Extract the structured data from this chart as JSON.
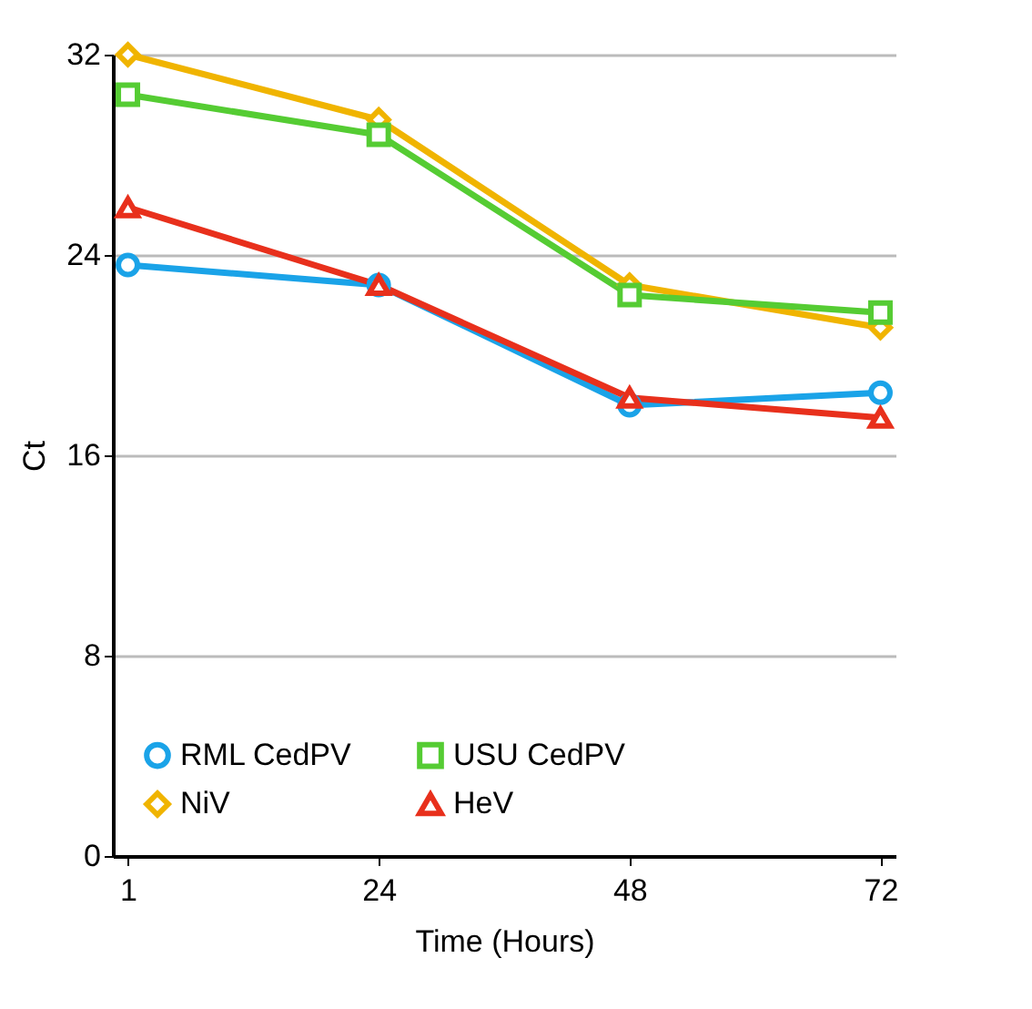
{
  "chart_data": {
    "type": "line",
    "xlabel": "Time (Hours)",
    "ylabel": "Ct",
    "categories": [
      "1",
      "24",
      "48",
      "72"
    ],
    "ylim": [
      0,
      32
    ],
    "yticks": [
      0,
      8,
      16,
      24,
      32
    ],
    "grid": "y",
    "legend": "bottom",
    "series": [
      {
        "name": "RML CedPV",
        "color": "#1aa3e8",
        "marker": "circle",
        "values": [
          23.6,
          22.8,
          18.0,
          18.5
        ]
      },
      {
        "name": "NiV",
        "color": "#f0b400",
        "marker": "diamond",
        "values": [
          32.0,
          29.4,
          22.8,
          21.1
        ]
      },
      {
        "name": "USU CedPV",
        "color": "#55cc33",
        "marker": "square",
        "values": [
          30.4,
          28.8,
          22.4,
          21.7
        ]
      },
      {
        "name": "HeV",
        "color": "#e8301c",
        "marker": "triangle",
        "values": [
          25.9,
          22.8,
          18.3,
          17.5
        ]
      }
    ]
  }
}
